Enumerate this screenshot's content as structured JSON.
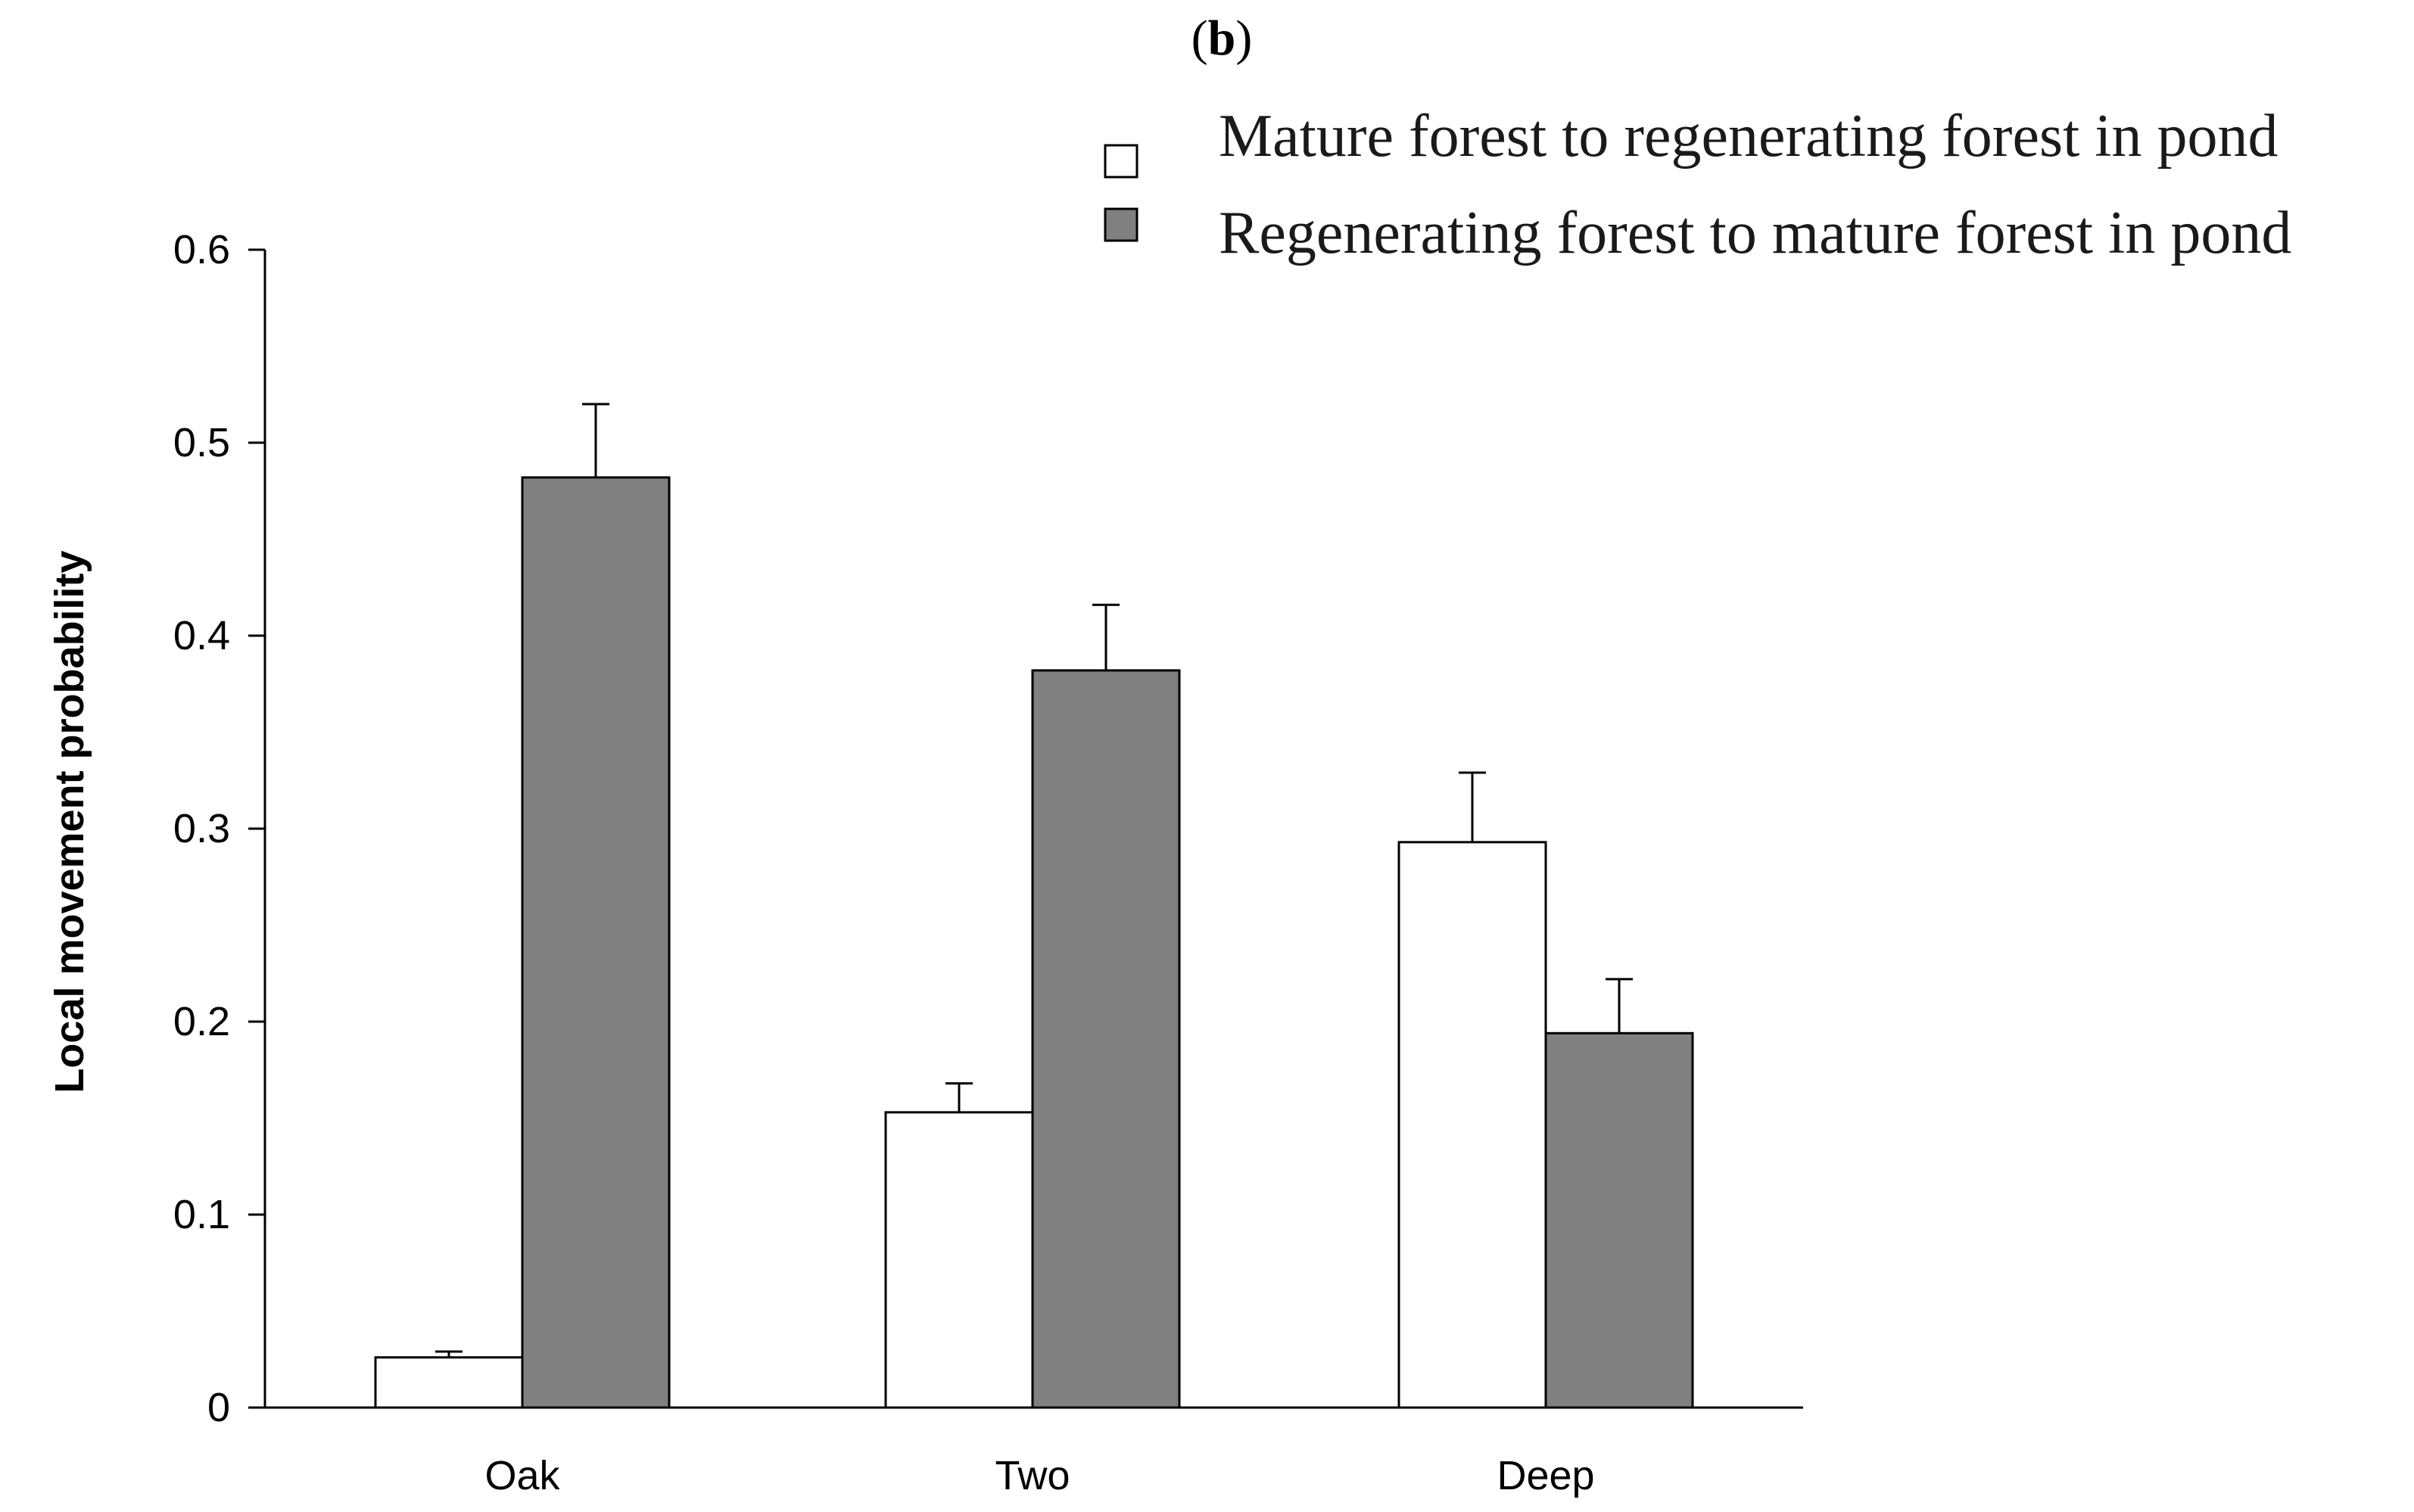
{
  "panel_label": {
    "open": "(",
    "letter": "b",
    "close": ")"
  },
  "colors": {
    "series_1_fill": "#ffffff",
    "series_2_fill": "#808080",
    "stroke": "#000000"
  },
  "chart_data": {
    "type": "bar",
    "title": "",
    "xlabel": "",
    "ylabel": "Local movement probability",
    "categories": [
      "Oak",
      "Two",
      "Deep"
    ],
    "series": [
      {
        "name": "Mature forest to regenerating forest in pond",
        "values": [
          0.026,
          0.153,
          0.293
        ],
        "errors": [
          0.003,
          0.015,
          0.036
        ]
      },
      {
        "name": "Regenerating forest to mature forest in pond",
        "values": [
          0.482,
          0.382,
          0.194
        ],
        "errors": [
          0.038,
          0.034,
          0.028
        ]
      }
    ],
    "ylim": [
      0,
      0.6
    ],
    "yticks": [
      0,
      0.1,
      0.2,
      0.3,
      0.4,
      0.5,
      0.6
    ],
    "ytick_labels": [
      "0",
      "0.1",
      "0.2",
      "0.3",
      "0.4",
      "0.5",
      "0.6"
    ],
    "grid": false,
    "legend_position": "top-right"
  }
}
